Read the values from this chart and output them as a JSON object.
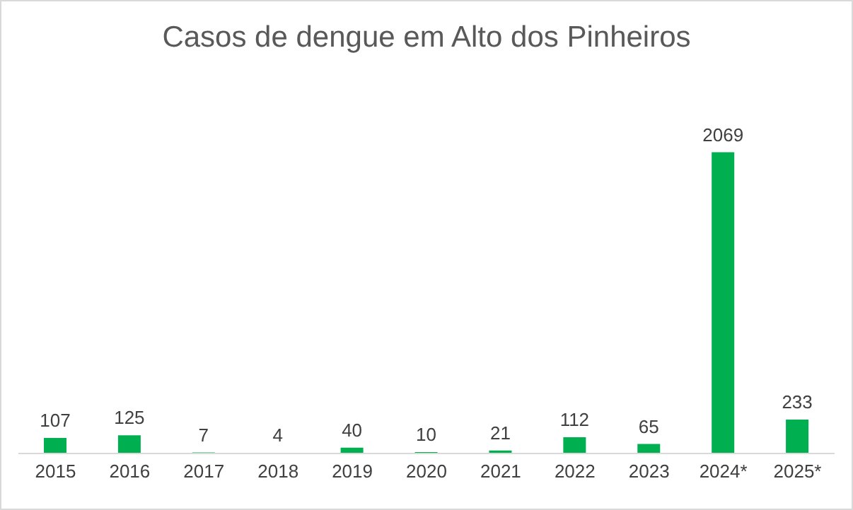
{
  "chart_data": {
    "type": "bar",
    "title": "Casos de dengue em Alto dos Pinheiros",
    "categories": [
      "2015",
      "2016",
      "2017",
      "2018",
      "2019",
      "2020",
      "2021",
      "2022",
      "2023",
      "2024*",
      "2025*"
    ],
    "values": [
      107,
      125,
      7,
      4,
      40,
      10,
      21,
      112,
      65,
      2069,
      233
    ],
    "color": "#00b050",
    "data_labels": true
  }
}
